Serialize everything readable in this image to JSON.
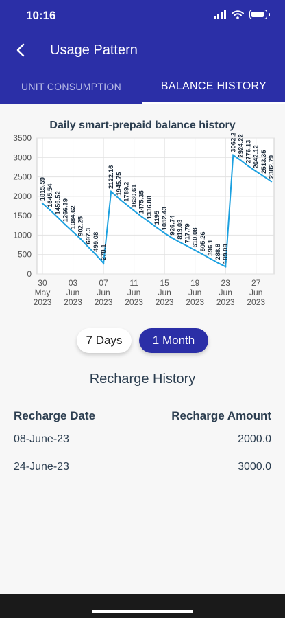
{
  "status": {
    "time": "10:16"
  },
  "header": {
    "title": "Usage Pattern"
  },
  "tabs": [
    {
      "label": "UNIT CONSUMPTION"
    },
    {
      "label": "BALANCE HISTORY"
    }
  ],
  "chart_data": {
    "type": "line",
    "title": "Daily smart-prepaid balance history",
    "xlabel": "",
    "ylabel": "",
    "ylim": [
      0,
      3500
    ],
    "yticks": [
      0,
      500,
      1000,
      1500,
      2000,
      2500,
      3000,
      3500
    ],
    "grid": true,
    "line_color": "#1da1e0",
    "x_tick_labels": [
      [
        "30",
        "May",
        "2023"
      ],
      [
        "03",
        "Jun",
        "2023"
      ],
      [
        "07",
        "Jun",
        "2023"
      ],
      [
        "11",
        "Jun",
        "2023"
      ],
      [
        "15",
        "Jun",
        "2023"
      ],
      [
        "19",
        "Jun",
        "2023"
      ],
      [
        "23",
        "Jun",
        "2023"
      ],
      [
        "27",
        "Jun",
        "2023"
      ]
    ],
    "x": [
      "30 May",
      "31 May",
      "01 Jun",
      "02 Jun",
      "03 Jun",
      "04 Jun",
      "05 Jun",
      "06 Jun",
      "07 Jun",
      "08 Jun",
      "09 Jun",
      "10 Jun",
      "11 Jun",
      "12 Jun",
      "13 Jun",
      "14 Jun",
      "15 Jun",
      "16 Jun",
      "17 Jun",
      "18 Jun",
      "19 Jun",
      "20 Jun",
      "21 Jun",
      "22 Jun",
      "23 Jun",
      "24 Jun",
      "25 Jun",
      "26 Jun",
      "27 Jun",
      "28 Jun",
      "29 Jun"
    ],
    "values": [
      1815.59,
      1645.54,
      1456.52,
      1266.39,
      1084.62,
      902.25,
      697.3,
      499.08,
      278.1,
      2122.16,
      1945.75,
      1789.2,
      1630.61,
      1475.35,
      1336.88,
      1195,
      1052.43,
      926.74,
      819.03,
      717.79,
      610.08,
      505.26,
      396.1,
      288.8,
      189.09,
      3062.2,
      2924.22,
      2776.13,
      2642.12,
      2513.35,
      2382.79
    ],
    "labels": [
      "1815.59",
      "1645.54",
      "1456.52",
      "1266.39",
      "1084.62",
      "902.25",
      "697.3",
      "499.08",
      "278.1",
      "2122.16",
      "1945.75",
      "1789.2",
      "1630.61",
      "1475.35",
      "1336.88",
      "1195",
      "1052.43",
      "926.74",
      "819.03",
      "717.79",
      "610.08",
      "505.26",
      "396.1",
      "288.8",
      "189.09",
      "3062.2",
      "2924.22",
      "2776.13",
      "2642.12",
      "2513.35",
      "2382.79"
    ]
  },
  "range": {
    "week_label": "7 Days",
    "month_label": "1 Month",
    "selected": "1 Month"
  },
  "recharge": {
    "title": "Recharge History",
    "date_header": "Recharge Date",
    "amount_header": "Recharge Amount",
    "rows": [
      {
        "date": "08-June-23",
        "amount": "2000.0"
      },
      {
        "date": "24-June-23",
        "amount": "3000.0"
      }
    ]
  }
}
